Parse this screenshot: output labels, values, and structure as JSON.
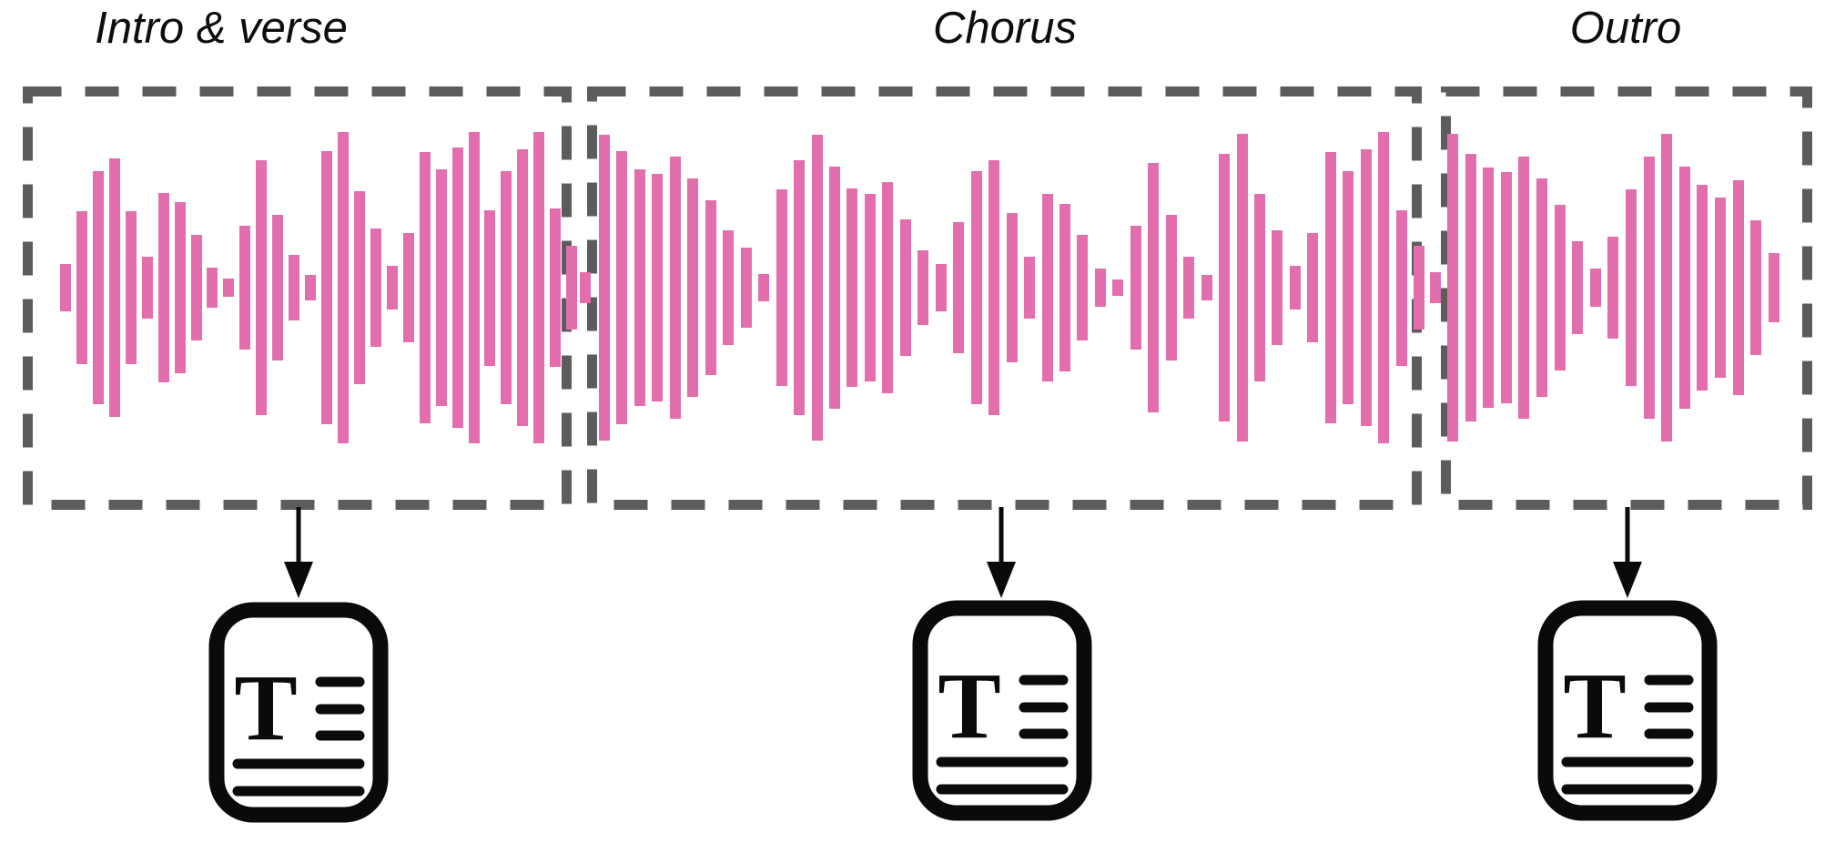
{
  "figure": {
    "sections": [
      {
        "id": "intro-verse",
        "label": "Intro & verse"
      },
      {
        "id": "chorus",
        "label": "Chorus"
      },
      {
        "id": "outro",
        "label": "Outro"
      }
    ],
    "doc_icon_letter": "T",
    "colors": {
      "waveform_pink": "#e26eae",
      "dash_gray": "#5c5c5c",
      "ink_black": "#0a0a0a",
      "background": "#ffffff"
    },
    "waveform": {
      "type": "amplitude-bars",
      "intro": [
        0.15,
        0.49,
        0.75,
        0.83,
        0.49,
        0.2,
        0.61,
        0.55,
        0.34,
        0.13,
        0.06,
        0.4,
        0.82,
        0.47,
        0.21,
        0.08,
        0.88,
        1.0,
        0.62,
        0.38,
        0.14,
        0.35,
        0.87,
        0.76,
        0.9,
        1.0,
        0.5,
        0.75,
        0.89,
        1.0,
        0.51,
        0.27
      ],
      "boundary_1": [
        0.1
      ],
      "chorus": [
        0.98,
        0.88,
        0.76,
        0.73,
        0.84,
        0.7,
        0.56,
        0.37,
        0.26,
        0.09,
        0.63,
        0.82,
        0.98,
        0.78,
        0.64,
        0.6,
        0.68,
        0.44,
        0.24,
        0.15,
        0.42,
        0.75,
        0.82,
        0.48,
        0.2,
        0.6,
        0.54,
        0.34,
        0.12,
        0.05,
        0.4,
        0.8,
        0.47,
        0.2,
        0.08,
        0.86,
        0.99,
        0.6,
        0.37,
        0.14,
        0.35,
        0.87,
        0.75,
        0.89,
        1.0,
        0.5,
        0.27
      ],
      "boundary_2": [
        0.1
      ],
      "outro": [
        0.99,
        0.86,
        0.77,
        0.74,
        0.84,
        0.7,
        0.53,
        0.3,
        0.12,
        0.33,
        0.63,
        0.84,
        0.99,
        0.78,
        0.66,
        0.58,
        0.69,
        0.43,
        0.22
      ]
    }
  }
}
